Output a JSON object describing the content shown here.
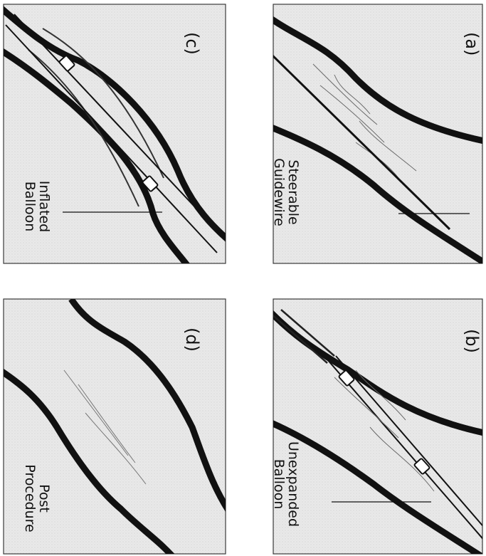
{
  "panels": [
    {
      "letter": "(a)",
      "label_line1": "Steerable",
      "label_line2": "Guidewire"
    },
    {
      "letter": "(b)",
      "label_line1": "Unexpanded",
      "label_line2": "Balloon"
    },
    {
      "letter": "(c)",
      "label_line1": "Inflated",
      "label_line2": "Balloon"
    },
    {
      "letter": "(d)",
      "label_line1": "Post",
      "label_line2": "Procedure"
    }
  ],
  "colors": {
    "background": "#e9e9e9",
    "vessel_wall": "#111111",
    "plaque_line": "#6a6a6a",
    "border": "#3a3a3a"
  }
}
